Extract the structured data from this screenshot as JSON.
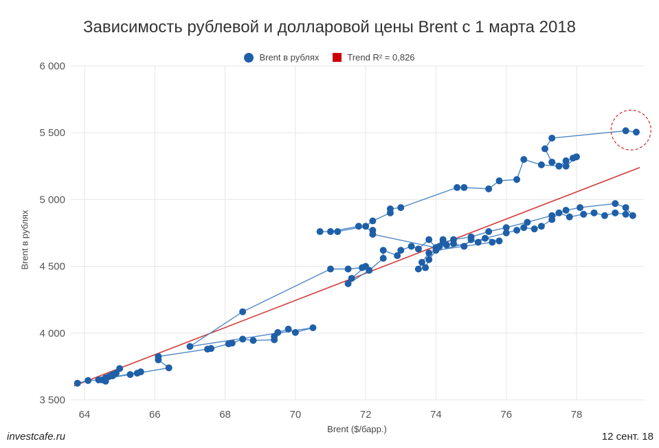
{
  "chart_data": {
    "type": "scatter",
    "title": "Зависимость рублевой и долларовой цены Brent с 1 марта 2018",
    "xlabel": "Brent ($/барр.)",
    "ylabel": "Brent в рублях",
    "xlim": [
      63.7,
      79.8
    ],
    "ylim": [
      3500,
      6000
    ],
    "x_ticks": [
      64,
      66,
      68,
      70,
      72,
      74,
      76,
      78
    ],
    "x_tick_labels": [
      "64",
      "66",
      "68",
      "70",
      "72",
      "74",
      "76",
      "78"
    ],
    "y_ticks": [
      3500,
      4000,
      4500,
      5000,
      5500,
      6000
    ],
    "y_tick_labels": [
      "3 500",
      "4 000",
      "4 500",
      "5 000",
      "5 500",
      "6 000"
    ],
    "grid": true,
    "legend_position": "top-center",
    "series": [
      {
        "name": "Brent в рублях",
        "color": "#1f5fa8",
        "connected": true,
        "points": [
          [
            63.8,
            3625
          ],
          [
            64.1,
            3645
          ],
          [
            64.5,
            3650
          ],
          [
            64.6,
            3640
          ],
          [
            64.7,
            3675
          ],
          [
            64.8,
            3690
          ],
          [
            64.9,
            3700
          ],
          [
            65.0,
            3735
          ],
          [
            64.8,
            3680
          ],
          [
            64.6,
            3665
          ],
          [
            65.3,
            3690
          ],
          [
            65.5,
            3700
          ],
          [
            65.6,
            3710
          ],
          [
            64.4,
            3650
          ],
          [
            66.4,
            3740
          ],
          [
            66.1,
            3800
          ],
          [
            66.1,
            3825
          ],
          [
            67.5,
            3880
          ],
          [
            67.6,
            3885
          ],
          [
            68.1,
            3920
          ],
          [
            68.2,
            3925
          ],
          [
            68.5,
            3955
          ],
          [
            68.8,
            3945
          ],
          [
            69.4,
            3950
          ],
          [
            69.4,
            3975
          ],
          [
            69.5,
            4005
          ],
          [
            69.8,
            4030
          ],
          [
            70.0,
            4005
          ],
          [
            70.5,
            4040
          ],
          [
            67.0,
            3900
          ],
          [
            68.5,
            4160
          ],
          [
            71.0,
            4480
          ],
          [
            71.5,
            4480
          ],
          [
            71.9,
            4490
          ],
          [
            72.0,
            4500
          ],
          [
            71.6,
            4410
          ],
          [
            71.5,
            4370
          ],
          [
            72.1,
            4470
          ],
          [
            72.5,
            4560
          ],
          [
            72.5,
            4620
          ],
          [
            72.9,
            4580
          ],
          [
            73.0,
            4620
          ],
          [
            73.3,
            4650
          ],
          [
            73.5,
            4630
          ],
          [
            73.8,
            4700
          ],
          [
            74.0,
            4640
          ],
          [
            74.1,
            4650
          ],
          [
            74.2,
            4700
          ],
          [
            74.3,
            4660
          ],
          [
            74.5,
            4670
          ],
          [
            74.8,
            4650
          ],
          [
            75.0,
            4700
          ],
          [
            75.2,
            4680
          ],
          [
            75.4,
            4710
          ],
          [
            75.8,
            4690
          ],
          [
            75.6,
            4680
          ],
          [
            74.0,
            4620
          ],
          [
            73.8,
            4550
          ],
          [
            73.7,
            4490
          ],
          [
            73.5,
            4480
          ],
          [
            73.6,
            4530
          ],
          [
            73.8,
            4600
          ],
          [
            76.0,
            4750
          ],
          [
            76.3,
            4770
          ],
          [
            76.5,
            4790
          ],
          [
            76.8,
            4780
          ],
          [
            77.0,
            4800
          ],
          [
            77.3,
            4850
          ],
          [
            77.5,
            4900
          ],
          [
            77.8,
            4870
          ],
          [
            78.2,
            4890
          ],
          [
            78.5,
            4900
          ],
          [
            78.8,
            4880
          ],
          [
            79.1,
            4900
          ],
          [
            79.4,
            4890
          ],
          [
            79.6,
            4880
          ],
          [
            79.4,
            4940
          ],
          [
            79.1,
            4970
          ],
          [
            78.1,
            4940
          ],
          [
            77.7,
            4920
          ],
          [
            77.3,
            4880
          ],
          [
            76.6,
            4830
          ],
          [
            76.0,
            4790
          ],
          [
            75.5,
            4760
          ],
          [
            75.0,
            4720
          ],
          [
            74.5,
            4700
          ],
          [
            74.2,
            4680
          ],
          [
            74.0,
            4640
          ],
          [
            72.2,
            4740
          ],
          [
            72.2,
            4770
          ],
          [
            71.8,
            4800
          ],
          [
            71.0,
            4760
          ],
          [
            70.7,
            4760
          ],
          [
            71.2,
            4760
          ],
          [
            72.0,
            4800
          ],
          [
            72.2,
            4840
          ],
          [
            72.7,
            4900
          ],
          [
            72.7,
            4930
          ],
          [
            73.0,
            4940
          ],
          [
            74.6,
            5090
          ],
          [
            74.8,
            5090
          ],
          [
            75.5,
            5080
          ],
          [
            75.8,
            5140
          ],
          [
            76.3,
            5150
          ],
          [
            76.5,
            5300
          ],
          [
            77.0,
            5260
          ],
          [
            77.5,
            5250
          ],
          [
            77.7,
            5290
          ],
          [
            77.9,
            5310
          ],
          [
            78.0,
            5320
          ],
          [
            77.7,
            5250
          ],
          [
            77.3,
            5280
          ],
          [
            77.1,
            5380
          ],
          [
            77.3,
            5460
          ],
          [
            79.4,
            5515
          ],
          [
            79.7,
            5505
          ]
        ]
      },
      {
        "name": "Trend R² = 0,826",
        "color": "#d43a3a",
        "type": "line",
        "points": [
          [
            63.7,
            3605
          ],
          [
            79.8,
            5240
          ]
        ]
      }
    ]
  },
  "labels": {
    "source": "investcafe.ru",
    "date": "12 сент. 18"
  }
}
